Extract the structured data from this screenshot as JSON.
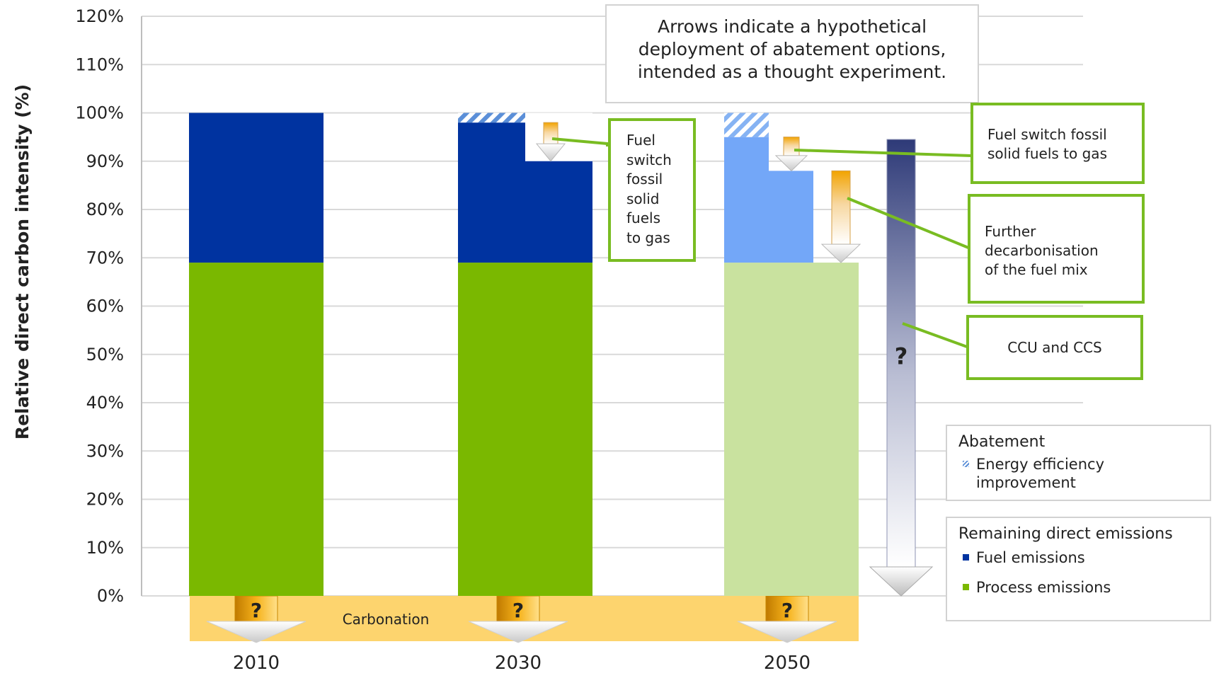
{
  "chart_data": {
    "type": "bar",
    "stacked": true,
    "categories": [
      "2010",
      "2030",
      "2050"
    ],
    "ylabel": "Relative direct carbon intensity (%)",
    "ylim": [
      0,
      120
    ],
    "yticks": [
      "0%",
      "10%",
      "20%",
      "30%",
      "40%",
      "50%",
      "60%",
      "70%",
      "80%",
      "90%",
      "100%",
      "110%",
      "120%"
    ],
    "grid": true,
    "series": [
      {
        "name": "Process emissions",
        "values": [
          69,
          69,
          69
        ],
        "colors": [
          "#7ab800",
          "#7ab800",
          "#c9e29f"
        ]
      },
      {
        "name": "Fuel emissions",
        "values": [
          31,
          29,
          26
        ],
        "colors": [
          "#0033a0",
          "#0033a0",
          "#73a7f8"
        ]
      },
      {
        "name": "Energy efficiency improvement",
        "values": [
          0,
          2,
          5
        ],
        "colors": [
          "#5b8fd8",
          "#5b8fd8",
          "#7fb0f5"
        ]
      }
    ],
    "abatement_steps": [
      {
        "category": "2030",
        "from": 100,
        "to": 90,
        "label": "Fuel switch fossil solid fuels to gas"
      },
      {
        "category": "2050",
        "from": 95,
        "to": 88,
        "label": "Fuel switch fossil solid fuels to gas"
      },
      {
        "category": "2050",
        "from": 88,
        "to": 69,
        "label": "Further decarbonisation of the fuel mix"
      },
      {
        "category": "2050",
        "from": 95,
        "to": 0,
        "label": "CCU and CCS"
      }
    ],
    "carbonation": {
      "label": "Carbonation",
      "question_mark": "?",
      "color": "#fdd46e"
    },
    "ccs_question_mark": "?",
    "annotation": "Arrows indicate a hypothetical deployment of abatement options, intended as a thought experiment.",
    "callouts": {
      "fuel_switch_2030": [
        "Fuel",
        "switch",
        "fossil",
        "solid",
        "fuels",
        "to gas"
      ],
      "fuel_switch_2050": [
        "Fuel switch fossil",
        "solid fuels to gas"
      ],
      "further_decarb": [
        "Further",
        "decarbonisation",
        "of the fuel mix"
      ],
      "ccu_ccs": "CCU and CCS"
    },
    "legend": {
      "abatement_title": "Abatement",
      "abatement_items": [
        {
          "label_lines": [
            "Energy efficiency",
            "improvement"
          ],
          "color": "#5b8fd8"
        }
      ],
      "remaining_title": "Remaining direct emissions",
      "remaining_items": [
        {
          "label": "Fuel emissions",
          "color": "#0033a0"
        },
        {
          "label": "Process emissions",
          "color": "#7ab800"
        }
      ]
    },
    "colors": {
      "gridline": "#d9d9d9",
      "callout_border": "#79bc22",
      "arrow": "#f0a000",
      "ccs_arrow_top": "#2e3a78"
    }
  }
}
